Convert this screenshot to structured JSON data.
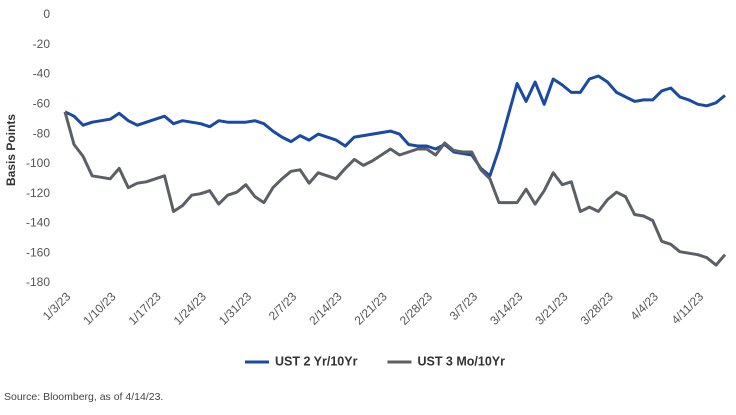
{
  "chart_data": {
    "type": "line",
    "y_label": "Basis Points",
    "source": "Source: Bloomberg, as of 4/14/23.",
    "categories": [
      "1/3/23",
      null,
      null,
      null,
      null,
      "1/10/23",
      null,
      null,
      null,
      null,
      "1/17/23",
      null,
      null,
      null,
      null,
      "1/24/23",
      null,
      null,
      null,
      null,
      "1/31/23",
      null,
      null,
      null,
      null,
      "2/7/23",
      null,
      null,
      null,
      null,
      "2/14/23",
      null,
      null,
      null,
      null,
      "2/21/23",
      null,
      null,
      null,
      null,
      "2/28/23",
      null,
      null,
      null,
      null,
      "3/7/23",
      null,
      null,
      null,
      null,
      "3/14/23",
      null,
      null,
      null,
      null,
      "3/21/23",
      null,
      null,
      null,
      null,
      "3/28/23",
      null,
      null,
      null,
      null,
      "4/4/23",
      null,
      null,
      null,
      null,
      "4/11/23",
      null,
      null,
      null
    ],
    "series": [
      {
        "name": "UST 2 Yr/10Yr",
        "color": "#1a4aa5",
        "values": [
          -65,
          -68,
          -74,
          -72,
          -71,
          -70,
          -66,
          -71,
          -74,
          -72,
          -70,
          -68,
          -73,
          -71,
          -72,
          -73,
          -75,
          -71,
          -72,
          -72,
          -72,
          -71,
          -73,
          -78,
          -82,
          -85,
          -81,
          -84,
          -80,
          -82,
          -84,
          -88,
          -82,
          -81,
          -80,
          -79,
          -78,
          -80,
          -87,
          -88,
          -88,
          -90,
          -87,
          -92,
          -93,
          -94,
          -103,
          -108,
          -90,
          -68,
          -46,
          -58,
          -45,
          -60,
          -43,
          -47,
          -52,
          -52,
          -43,
          -41,
          -45,
          -52,
          -55,
          -58,
          -57,
          -57,
          -51,
          -49,
          -55,
          -57,
          -60,
          -61,
          -59,
          -54
        ]
      },
      {
        "name": "UST 3 Mo/10Yr",
        "color": "#5c6066",
        "values": [
          -65,
          -87,
          -95,
          -108,
          -109,
          -110,
          -103,
          -116,
          -113,
          -112,
          -110,
          -108,
          -132,
          -128,
          -121,
          -120,
          -118,
          -127,
          -121,
          -119,
          -114,
          -122,
          -126,
          -116,
          -110,
          -105,
          -104,
          -113,
          -106,
          -108,
          -110,
          -103,
          -97,
          -101,
          -98,
          -94,
          -90,
          -94,
          -92,
          -90,
          -90,
          -94,
          -86,
          -91,
          -92,
          -92,
          -104,
          -110,
          -126,
          -126,
          -126,
          -117,
          -127,
          -118,
          -106,
          -114,
          -112,
          -132,
          -129,
          -132,
          -124,
          -119,
          -122,
          -134,
          -135,
          -138,
          -152,
          -154,
          -159,
          -160,
          -161,
          -163,
          -168,
          -161
        ]
      }
    ],
    "ylim": [
      -180,
      0
    ],
    "yticks": [
      0,
      -20,
      -40,
      -60,
      -80,
      -100,
      -120,
      -140,
      -160,
      -180
    ],
    "grid": false
  }
}
